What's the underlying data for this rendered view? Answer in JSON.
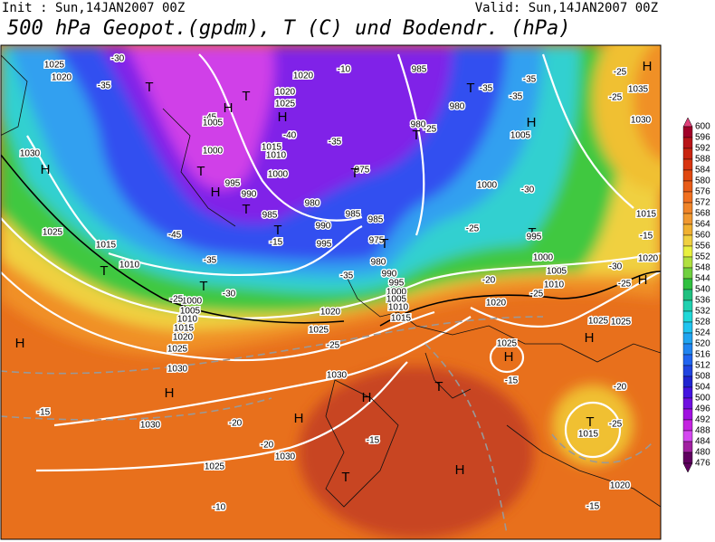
{
  "header": {
    "init": "Init : Sun,14JAN2007 00Z",
    "valid": "Valid: Sun,14JAN2007 00Z",
    "title": "500 hPa Geopot.(gpdm), T (C) und Bodendr. (hPa)"
  },
  "colorbar": {
    "labels": [
      "600",
      "596",
      "592",
      "588",
      "584",
      "580",
      "576",
      "572",
      "568",
      "564",
      "560",
      "556",
      "552",
      "548",
      "544",
      "540",
      "536",
      "532",
      "528",
      "524",
      "520",
      "516",
      "512",
      "508",
      "504",
      "500",
      "496",
      "492",
      "488",
      "484",
      "480",
      "476"
    ],
    "colors": [
      "#e0407a",
      "#a00028",
      "#b81418",
      "#c82410",
      "#d83410",
      "#e04810",
      "#e85c18",
      "#f07020",
      "#f08428",
      "#f09830",
      "#f0b030",
      "#f0d040",
      "#e8f040",
      "#b0e040",
      "#70d040",
      "#30c040",
      "#20c080",
      "#20d0b0",
      "#20d8d8",
      "#20c4f0",
      "#20a4f0",
      "#2084f0",
      "#2064f0",
      "#2044e0",
      "#2024d0",
      "#4414e0",
      "#7010e0",
      "#a010e0",
      "#c424e0",
      "#d448f0",
      "#a020a0",
      "#600060"
    ]
  },
  "map": {
    "labels": [
      "1025",
      "1020",
      "-30",
      "-35",
      "T",
      "H",
      "T",
      "1020",
      "1020",
      "1025",
      "H",
      "-10",
      "985",
      "T",
      "-35",
      "980",
      "-35",
      "-35",
      "H",
      "1005",
      "980",
      "-25",
      "T",
      "-45",
      "1005",
      "1000",
      "-40",
      "1015",
      "1010",
      "-35",
      "H",
      "1030",
      "T",
      "995",
      "H",
      "990",
      "T",
      "1000",
      "975",
      "T",
      "980",
      "985",
      "990",
      "985",
      "T",
      "-15",
      "995",
      "985",
      "975",
      "T",
      "980",
      "990",
      "995",
      "1000",
      "1005",
      "1010",
      "1015",
      "-35",
      "1020",
      "1025",
      "-25",
      "1030",
      "H",
      "T",
      "-15",
      "T",
      "H",
      "H",
      "-20",
      "1030",
      "-20",
      "1025",
      "-10",
      "1030",
      "-15",
      "H",
      "1030",
      "1025",
      "1020",
      "1015",
      "1010",
      "1005",
      "1000",
      "-25",
      "T",
      "-30",
      "-35",
      "-45",
      "1015",
      "1010",
      "T",
      "1025",
      "H",
      "1035",
      "1030",
      "H",
      "-25",
      "-25",
      "1000",
      "-30",
      "T",
      "-25",
      "995",
      "1000",
      "1005",
      "1010",
      "-20",
      "1020",
      "-25",
      "1025",
      "1025",
      "-25",
      "H",
      "H",
      "1025",
      "H",
      "-15",
      "-20",
      "T",
      "-25",
      "1015",
      "1020",
      "-15",
      "-15",
      "1015",
      "1020",
      "-30"
    ]
  }
}
